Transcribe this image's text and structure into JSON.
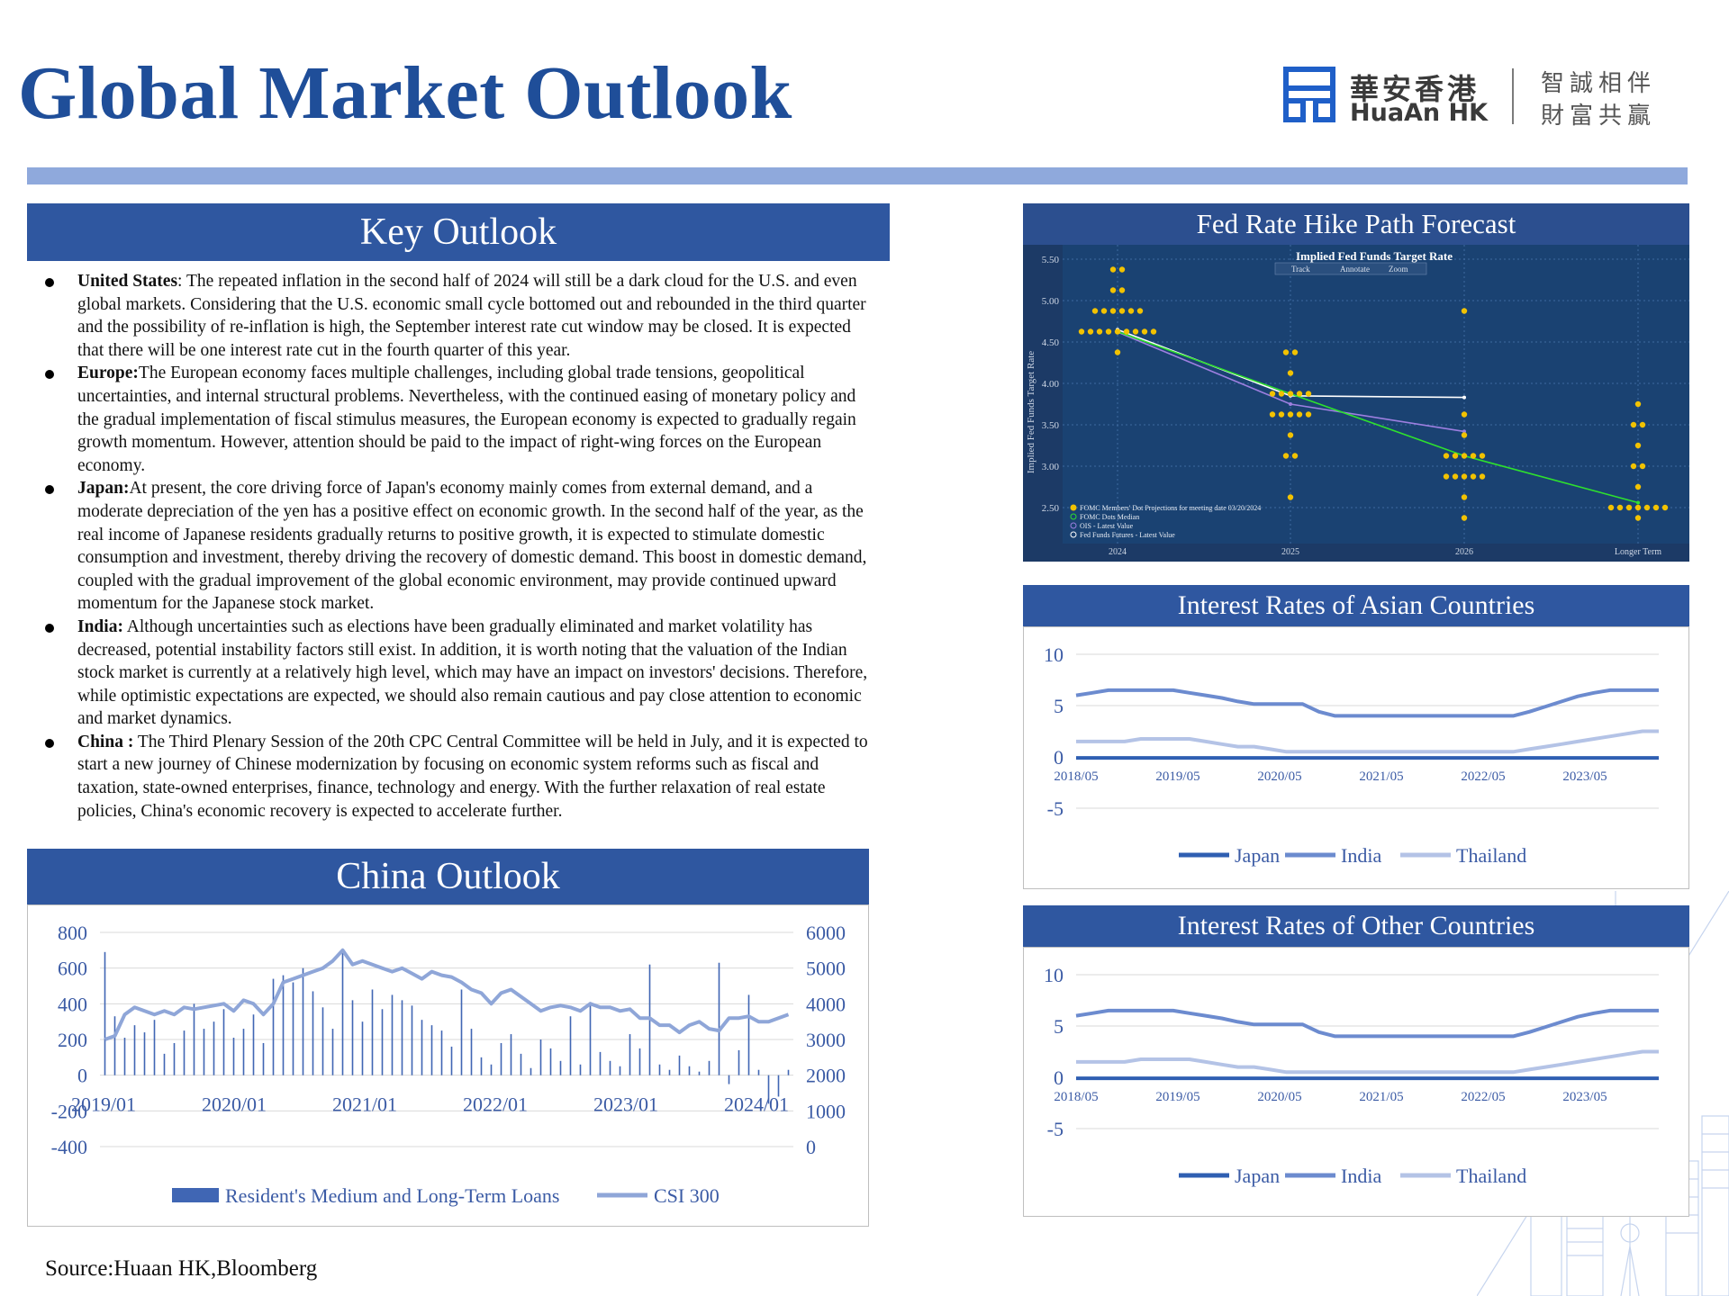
{
  "page_title": "Global Market Outlook",
  "logo": {
    "cn_name": "華安香港",
    "en_name": "HuaAn HK",
    "slogan_line1": "智誠相伴",
    "slogan_line2": "財富共贏"
  },
  "key_outlook": {
    "title": "Key Outlook",
    "items": [
      {
        "label": "United States",
        "sep": ": ",
        "text": "The repeated inflation in the second half of 2024 will still be a dark cloud for the U.S. and even global markets. Considering that the U.S. economic small cycle bottomed out and rebounded in the third quarter and the possibility of re-inflation is high, the September interest rate cut window may be closed. It is expected that there will be one interest rate cut in the fourth quarter of this year."
      },
      {
        "label": "Europe:",
        "sep": "",
        "text": "The European economy faces multiple challenges, including global trade tensions, geopolitical uncertainties, and internal structural problems. Nevertheless, with the continued easing of monetary policy and the gradual implementation of fiscal stimulus measures, the European economy is expected to gradually regain growth momentum. However, attention should be paid to the impact of right-wing forces on the European economy."
      },
      {
        "label": "Japan:",
        "sep": "",
        "text": "At present, the core driving force of Japan's economy mainly comes from external demand, and a moderate depreciation of the yen has a positive effect on economic growth. In the second half of the year, as the real income of Japanese residents gradually returns to positive growth, it is expected to stimulate domestic consumption and investment, thereby driving the recovery of domestic demand. This boost in domestic demand, coupled with the gradual improvement of the global economic environment, may provide continued upward momentum for the Japanese stock market."
      },
      {
        "label": "India:",
        "sep": " ",
        "text": "Although uncertainties such as elections have been gradually eliminated and market volatility has decreased, potential instability factors still exist. In addition, it is worth noting that the valuation of the Indian stock market is currently at a relatively high level, which may have an impact on investors' decisions. Therefore, while optimistic expectations are expected, we should also remain cautious and pay close attention to economic and market dynamics."
      },
      {
        "label": "China :",
        "sep": " ",
        "text": "The Third Plenary Session of the 20th CPC Central Committee will be held in July, and it is expected to start a new journey of Chinese modernization by focusing on economic system reforms such as fiscal and taxation, state-owned enterprises, finance, technology and energy. With the further relaxation of real estate policies, China's economic recovery is expected to accelerate further."
      }
    ]
  },
  "china_outlook": {
    "title": "China Outlook"
  },
  "fed_panel": {
    "title": "Fed Rate Hike Path Forecast"
  },
  "asian_panel": {
    "title": "Interest Rates of Asian Countries"
  },
  "other_panel": {
    "title": "Interest Rates of Other Countries"
  },
  "source": "Source:Huaan HK,Bloomberg",
  "chart_data": [
    {
      "id": "china",
      "type": "bar+line",
      "x_ticks": [
        "2019/01",
        "2020/01",
        "2021/01",
        "2022/01",
        "2023/01",
        "2024/01"
      ],
      "y_left": {
        "ticks": [
          800,
          600,
          400,
          200,
          0,
          -200,
          -400
        ],
        "lim": [
          -400,
          800
        ]
      },
      "y_right": {
        "ticks": [
          6000,
          5000,
          4000,
          3000,
          2000,
          1000,
          0
        ],
        "lim": [
          0,
          6000
        ]
      },
      "series": [
        {
          "name": "Resident's Medium and Long-Term Loans",
          "kind": "bar",
          "color": "#4066b4",
          "values": [
            690,
            330,
            210,
            280,
            240,
            310,
            120,
            180,
            250,
            400,
            260,
            300,
            370,
            210,
            260,
            340,
            180,
            540,
            560,
            520,
            600,
            470,
            380,
            260,
            700,
            420,
            300,
            480,
            370,
            450,
            420,
            390,
            310,
            280,
            250,
            160,
            480,
            260,
            100,
            60,
            180,
            230,
            120,
            40,
            200,
            150,
            80,
            330,
            60,
            410,
            130,
            80,
            50,
            230,
            150,
            620,
            60,
            30,
            110,
            50,
            20,
            80,
            630,
            -50,
            140,
            450,
            30,
            -160,
            -120,
            30
          ]
        },
        {
          "name": "CSI 300",
          "kind": "line",
          "color": "#8fa6d8",
          "values": [
            3000,
            3100,
            3700,
            3900,
            3800,
            3700,
            3800,
            3700,
            3900,
            3850,
            3900,
            3950,
            4000,
            3800,
            4100,
            4000,
            3700,
            4000,
            4600,
            4700,
            4800,
            4900,
            5000,
            5200,
            5500,
            5100,
            5200,
            5100,
            5000,
            4900,
            5000,
            4850,
            4700,
            4900,
            4800,
            4750,
            4600,
            4400,
            4300,
            4000,
            4300,
            4400,
            4200,
            4000,
            3800,
            3900,
            3950,
            3900,
            3800,
            4000,
            3900,
            3900,
            3800,
            3850,
            3600,
            3600,
            3400,
            3400,
            3200,
            3400,
            3500,
            3300,
            3250,
            3600,
            3600,
            3650,
            3500,
            3500,
            3600,
            3700
          ]
        }
      ]
    },
    {
      "id": "fed",
      "type": "scatter+line",
      "title": "Implied Fed Funds Target Rate",
      "ylabel": "Implied Fed Funds Target Rate",
      "toolbar": [
        "Track",
        "Annotate",
        "Zoom"
      ],
      "categories": [
        "2024",
        "2025",
        "2026",
        "Longer Term"
      ],
      "y_ticks": [
        "5.50",
        "5.00",
        "4.50",
        "4.00",
        "3.50",
        "3.00",
        "2.50"
      ],
      "ylim": [
        2.4,
        5.6
      ],
      "legend": [
        "FOMC Members' Dot Projections for meeting date 03/20/2024",
        "FOMC Dots Median",
        "OIS - Latest Value",
        "Fed Funds Futures - Latest Value"
      ],
      "dots": [
        [
          5.375,
          5.375,
          5.125,
          5.125,
          4.875,
          4.875,
          4.875,
          4.875,
          4.875,
          4.875,
          4.625,
          4.625,
          4.625,
          4.625,
          4.625,
          4.625,
          4.625,
          4.625,
          4.625,
          4.375
        ],
        [
          4.375,
          4.375,
          4.125,
          3.875,
          3.875,
          3.875,
          3.875,
          3.875,
          3.625,
          3.625,
          3.625,
          3.625,
          3.625,
          3.375,
          3.125,
          3.125,
          2.625
        ],
        [
          4.875,
          3.625,
          3.375,
          3.125,
          3.125,
          3.125,
          3.125,
          3.125,
          2.875,
          2.875,
          2.875,
          2.875,
          2.875,
          2.625,
          2.375
        ],
        [
          3.75,
          3.5,
          3.5,
          3.25,
          3.0,
          3.0,
          2.75,
          2.5,
          2.5,
          2.5,
          2.5,
          2.5,
          2.5,
          2.5,
          2.375
        ]
      ],
      "median": [
        4.625,
        3.875,
        3.125,
        2.56
      ],
      "ois": [
        4.65,
        3.85,
        3.83
      ],
      "futures": [
        4.62,
        3.75,
        3.42
      ]
    },
    {
      "id": "asian",
      "type": "line",
      "x_ticks": [
        "2018/05",
        "2019/05",
        "2020/05",
        "2021/05",
        "2022/05",
        "2023/05"
      ],
      "y_ticks": [
        10,
        5,
        0,
        -5
      ],
      "ylim": [
        -5,
        10
      ],
      "series": [
        {
          "name": "Japan",
          "color": "#2f5fb2",
          "values": [
            -0.1,
            -0.1,
            -0.1,
            -0.1,
            -0.1,
            -0.1,
            -0.1,
            -0.1,
            -0.1,
            -0.1,
            -0.1,
            -0.1,
            -0.1,
            -0.1,
            -0.1,
            -0.1,
            -0.1,
            -0.1,
            -0.1,
            -0.1,
            -0.1,
            -0.1,
            -0.1,
            -0.1,
            -0.1,
            -0.1,
            -0.1,
            -0.1,
            -0.1,
            -0.1,
            -0.1,
            -0.1,
            -0.1,
            -0.1,
            -0.1,
            -0.1,
            -0.1
          ]
        },
        {
          "name": "India",
          "color": "#6c8bcf",
          "values": [
            6.0,
            6.25,
            6.5,
            6.5,
            6.5,
            6.5,
            6.5,
            6.25,
            6.0,
            5.75,
            5.4,
            5.15,
            5.15,
            5.15,
            5.15,
            4.4,
            4.0,
            4.0,
            4.0,
            4.0,
            4.0,
            4.0,
            4.0,
            4.0,
            4.0,
            4.0,
            4.0,
            4.0,
            4.4,
            4.9,
            5.4,
            5.9,
            6.25,
            6.5,
            6.5,
            6.5,
            6.5
          ]
        },
        {
          "name": "Thailand",
          "color": "#b4c3e6",
          "values": [
            1.5,
            1.5,
            1.5,
            1.5,
            1.75,
            1.75,
            1.75,
            1.75,
            1.5,
            1.25,
            1.0,
            1.0,
            0.75,
            0.5,
            0.5,
            0.5,
            0.5,
            0.5,
            0.5,
            0.5,
            0.5,
            0.5,
            0.5,
            0.5,
            0.5,
            0.5,
            0.5,
            0.5,
            0.75,
            1.0,
            1.25,
            1.5,
            1.75,
            2.0,
            2.25,
            2.5,
            2.5
          ]
        }
      ]
    },
    {
      "id": "other",
      "type": "line",
      "x_ticks": [
        "2018/05",
        "2019/05",
        "2020/05",
        "2021/05",
        "2022/05",
        "2023/05"
      ],
      "y_ticks": [
        10,
        5,
        0,
        -5
      ],
      "ylim": [
        -5,
        10
      ],
      "series": [
        {
          "name": "Japan",
          "color": "#2f5fb2",
          "values": [
            -0.1,
            -0.1,
            -0.1,
            -0.1,
            -0.1,
            -0.1,
            -0.1,
            -0.1,
            -0.1,
            -0.1,
            -0.1,
            -0.1,
            -0.1,
            -0.1,
            -0.1,
            -0.1,
            -0.1,
            -0.1,
            -0.1,
            -0.1,
            -0.1,
            -0.1,
            -0.1,
            -0.1,
            -0.1,
            -0.1,
            -0.1,
            -0.1,
            -0.1,
            -0.1,
            -0.1,
            -0.1,
            -0.1,
            -0.1,
            -0.1,
            -0.1,
            -0.1
          ]
        },
        {
          "name": "India",
          "color": "#6c8bcf",
          "values": [
            6.0,
            6.25,
            6.5,
            6.5,
            6.5,
            6.5,
            6.5,
            6.25,
            6.0,
            5.75,
            5.4,
            5.15,
            5.15,
            5.15,
            5.15,
            4.4,
            4.0,
            4.0,
            4.0,
            4.0,
            4.0,
            4.0,
            4.0,
            4.0,
            4.0,
            4.0,
            4.0,
            4.0,
            4.4,
            4.9,
            5.4,
            5.9,
            6.25,
            6.5,
            6.5,
            6.5,
            6.5
          ]
        },
        {
          "name": "Thailand",
          "color": "#b4c3e6",
          "values": [
            1.5,
            1.5,
            1.5,
            1.5,
            1.75,
            1.75,
            1.75,
            1.75,
            1.5,
            1.25,
            1.0,
            1.0,
            0.75,
            0.5,
            0.5,
            0.5,
            0.5,
            0.5,
            0.5,
            0.5,
            0.5,
            0.5,
            0.5,
            0.5,
            0.5,
            0.5,
            0.5,
            0.5,
            0.75,
            1.0,
            1.25,
            1.5,
            1.75,
            2.0,
            2.25,
            2.5,
            2.5
          ]
        }
      ]
    }
  ]
}
